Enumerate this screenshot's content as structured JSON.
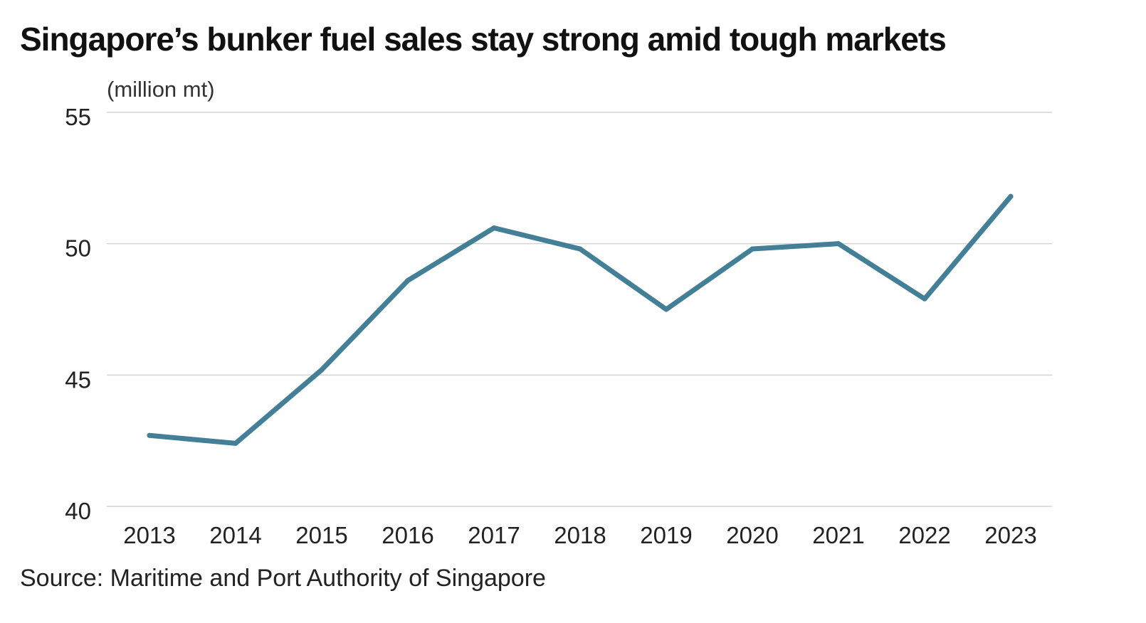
{
  "header": {
    "title": "Singapore’s bunker fuel sales stay strong amid tough markets",
    "unit_label": "(million mt)"
  },
  "footer": {
    "source": "Source: Maritime and Port Authority of Singapore"
  },
  "colors": {
    "series": "#437f97",
    "grid": "#d4d4d4",
    "text": "#111111"
  },
  "chart_data": {
    "type": "line",
    "title": "Singapore’s bunker fuel sales stay strong amid tough markets",
    "xlabel": "",
    "ylabel": "(million mt)",
    "categories": [
      "2013",
      "2014",
      "2015",
      "2016",
      "2017",
      "2018",
      "2019",
      "2020",
      "2021",
      "2022",
      "2023"
    ],
    "series": [
      {
        "values": [
          42.7,
          42.4,
          45.2,
          48.6,
          50.6,
          49.8,
          47.5,
          49.8,
          50.0,
          47.9,
          51.8
        ]
      }
    ],
    "ylim": [
      40,
      55
    ],
    "yticks": [
      "40",
      "45",
      "50",
      "55"
    ],
    "grid": true,
    "legend": "none"
  }
}
